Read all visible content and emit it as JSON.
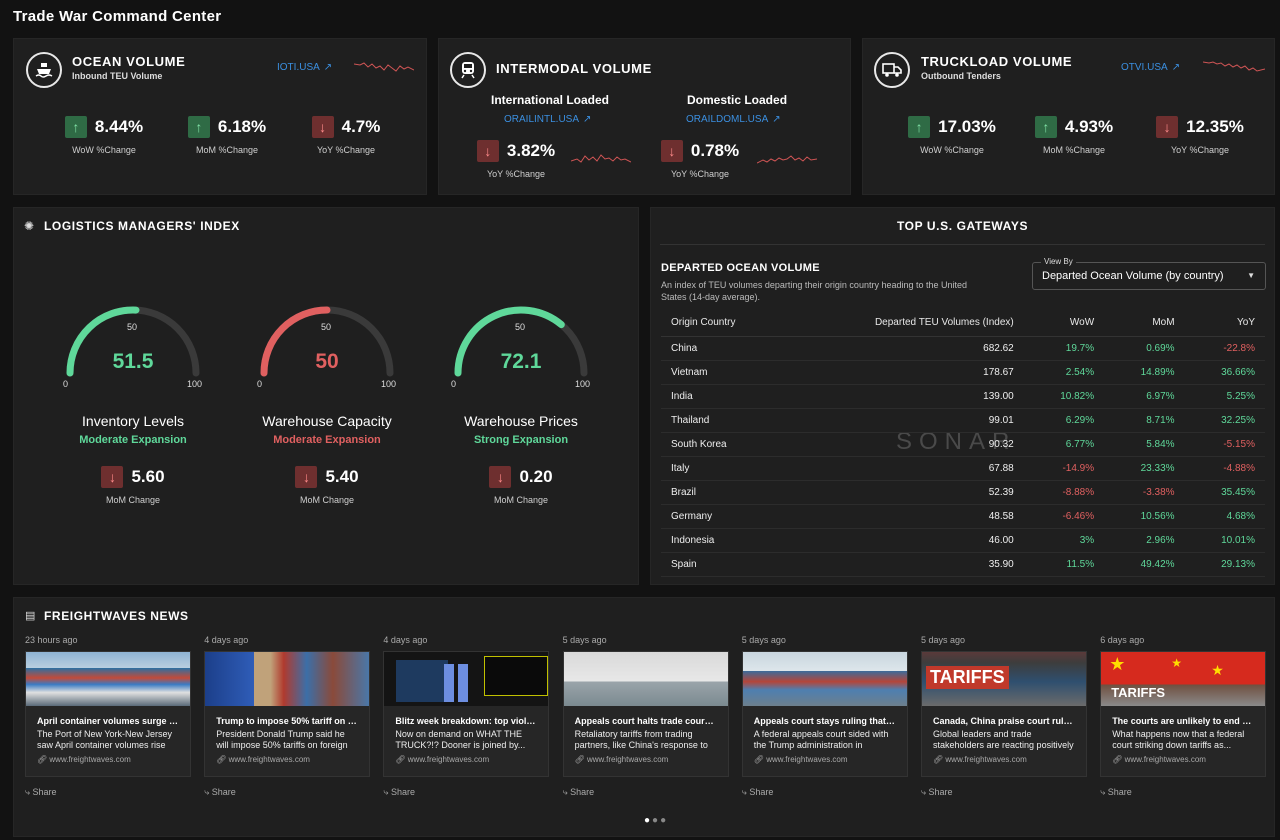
{
  "app_title": "Trade War Command Center",
  "ocean": {
    "title": "OCEAN VOLUME",
    "subtitle": "Inbound TEU Volume",
    "ticker": "IOTI.USA",
    "metrics": [
      {
        "value": "8.44%",
        "label": "WoW %Change",
        "direction": "up"
      },
      {
        "value": "6.18%",
        "label": "MoM %Change",
        "direction": "up"
      },
      {
        "value": "4.7%",
        "label": "YoY %Change",
        "direction": "down"
      }
    ]
  },
  "intermodal": {
    "title": "INTERMODAL VOLUME",
    "international": {
      "label": "International Loaded",
      "ticker": "ORAILINTL.USA",
      "value": "3.82%",
      "metric_label": "YoY %Change",
      "direction": "down"
    },
    "domestic": {
      "label": "Domestic Loaded",
      "ticker": "ORAILDOML.USA",
      "value": "0.78%",
      "metric_label": "YoY %Change",
      "direction": "down"
    }
  },
  "truckload": {
    "title": "TRUCKLOAD VOLUME",
    "subtitle": "Outbound Tenders",
    "ticker": "OTVI.USA",
    "metrics": [
      {
        "value": "17.03%",
        "label": "WoW %Change",
        "direction": "up"
      },
      {
        "value": "4.93%",
        "label": "MoM %Change",
        "direction": "up"
      },
      {
        "value": "12.35%",
        "label": "YoY %Change",
        "direction": "down"
      }
    ]
  },
  "lmi": {
    "title": "LOGISTICS MANAGERS' INDEX",
    "gauges": [
      {
        "name": "Inventory Levels",
        "status": "Moderate Expansion",
        "value": "51.5",
        "level": 51.5,
        "color": "#5fd89a",
        "mom": "5.60",
        "mom_label": "MoM Change",
        "min": "0",
        "mid": "50",
        "max": "100"
      },
      {
        "name": "Warehouse Capacity",
        "status": "Moderate Expansion",
        "value": "50",
        "level": 50,
        "color": "#e06060",
        "mom": "5.40",
        "mom_label": "MoM Change",
        "min": "0",
        "mid": "50",
        "max": "100"
      },
      {
        "name": "Warehouse Prices",
        "status": "Strong Expansion",
        "value": "72.1",
        "level": 72.1,
        "color": "#5fd89a",
        "mom": "0.20",
        "mom_label": "MoM Change",
        "min": "0",
        "mid": "50",
        "max": "100"
      }
    ]
  },
  "gateways": {
    "title": "TOP U.S. GATEWAYS",
    "section_title": "DEPARTED OCEAN VOLUME",
    "description": "An index of TEU volumes departing their origin country heading to the United States (14-day average).",
    "view_by_label": "View By",
    "view_by_value": "Departed Ocean Volume (by country)",
    "watermark": "SONAR",
    "columns": [
      "Origin Country",
      "Departed TEU Volumes (Index)",
      "WoW",
      "MoM",
      "YoY"
    ],
    "rows": [
      {
        "country": "China",
        "index": "682.62",
        "wow": "19.7%",
        "mom": "0.69%",
        "yoy": "-22.8%"
      },
      {
        "country": "Vietnam",
        "index": "178.67",
        "wow": "2.54%",
        "mom": "14.89%",
        "yoy": "36.66%"
      },
      {
        "country": "India",
        "index": "139.00",
        "wow": "10.82%",
        "mom": "6.97%",
        "yoy": "5.25%"
      },
      {
        "country": "Thailand",
        "index": "99.01",
        "wow": "6.29%",
        "mom": "8.71%",
        "yoy": "32.25%"
      },
      {
        "country": "South Korea",
        "index": "90.32",
        "wow": "6.77%",
        "mom": "5.84%",
        "yoy": "-5.15%"
      },
      {
        "country": "Italy",
        "index": "67.88",
        "wow": "-14.9%",
        "mom": "23.33%",
        "yoy": "-4.88%"
      },
      {
        "country": "Brazil",
        "index": "52.39",
        "wow": "-8.88%",
        "mom": "-3.38%",
        "yoy": "35.45%"
      },
      {
        "country": "Germany",
        "index": "48.58",
        "wow": "-6.46%",
        "mom": "10.56%",
        "yoy": "4.68%"
      },
      {
        "country": "Indonesia",
        "index": "46.00",
        "wow": "3%",
        "mom": "2.96%",
        "yoy": "10.01%"
      },
      {
        "country": "Spain",
        "index": "35.90",
        "wow": "11.5%",
        "mom": "49.42%",
        "yoy": "29.13%"
      }
    ]
  },
  "news": {
    "title": "FREIGHTWAVES NEWS",
    "share_label": "Share",
    "source": "www.freightwaves.com",
    "items": [
      {
        "time": "23 hours ago",
        "title": "April container volumes surge at P...",
        "desc": "The Port of New York-New Jersey saw April container volumes rise 6%...",
        "img": "port"
      },
      {
        "time": "4 days ago",
        "title": "Trump to impose 50% tariff on imp...",
        "desc": "President Donald Trump said he will impose 50% tariffs on foreign steel,...",
        "img": "trump"
      },
      {
        "time": "4 days ago",
        "title": "Blitz week breakdown: top violatio...",
        "desc": "Now on demand on WHAT THE TRUCK?!? Dooner is joined by...",
        "img": "chart"
      },
      {
        "time": "5 days ago",
        "title": "Appeals court halts trade court's ta...",
        "desc": "Retaliatory tariffs from trading partners, like China's response to th...",
        "img": "cranes"
      },
      {
        "time": "5 days ago",
        "title": "Appeals court stays ruling that bloc...",
        "desc": "A federal appeals court sided with the Trump administration in temporaril...",
        "img": "ship"
      },
      {
        "time": "5 days ago",
        "title": "Canada, China praise court ruling s...",
        "desc": "Global leaders and trade stakeholders are reacting positively to a court...",
        "img": "tariffs",
        "banner": "TARIFFS"
      },
      {
        "time": "6 days ago",
        "title": "The courts are unlikely to end the t...",
        "desc": "What happens now that a federal court striking down tariffs as...",
        "img": "china",
        "banner": "TARIFFS"
      }
    ]
  }
}
